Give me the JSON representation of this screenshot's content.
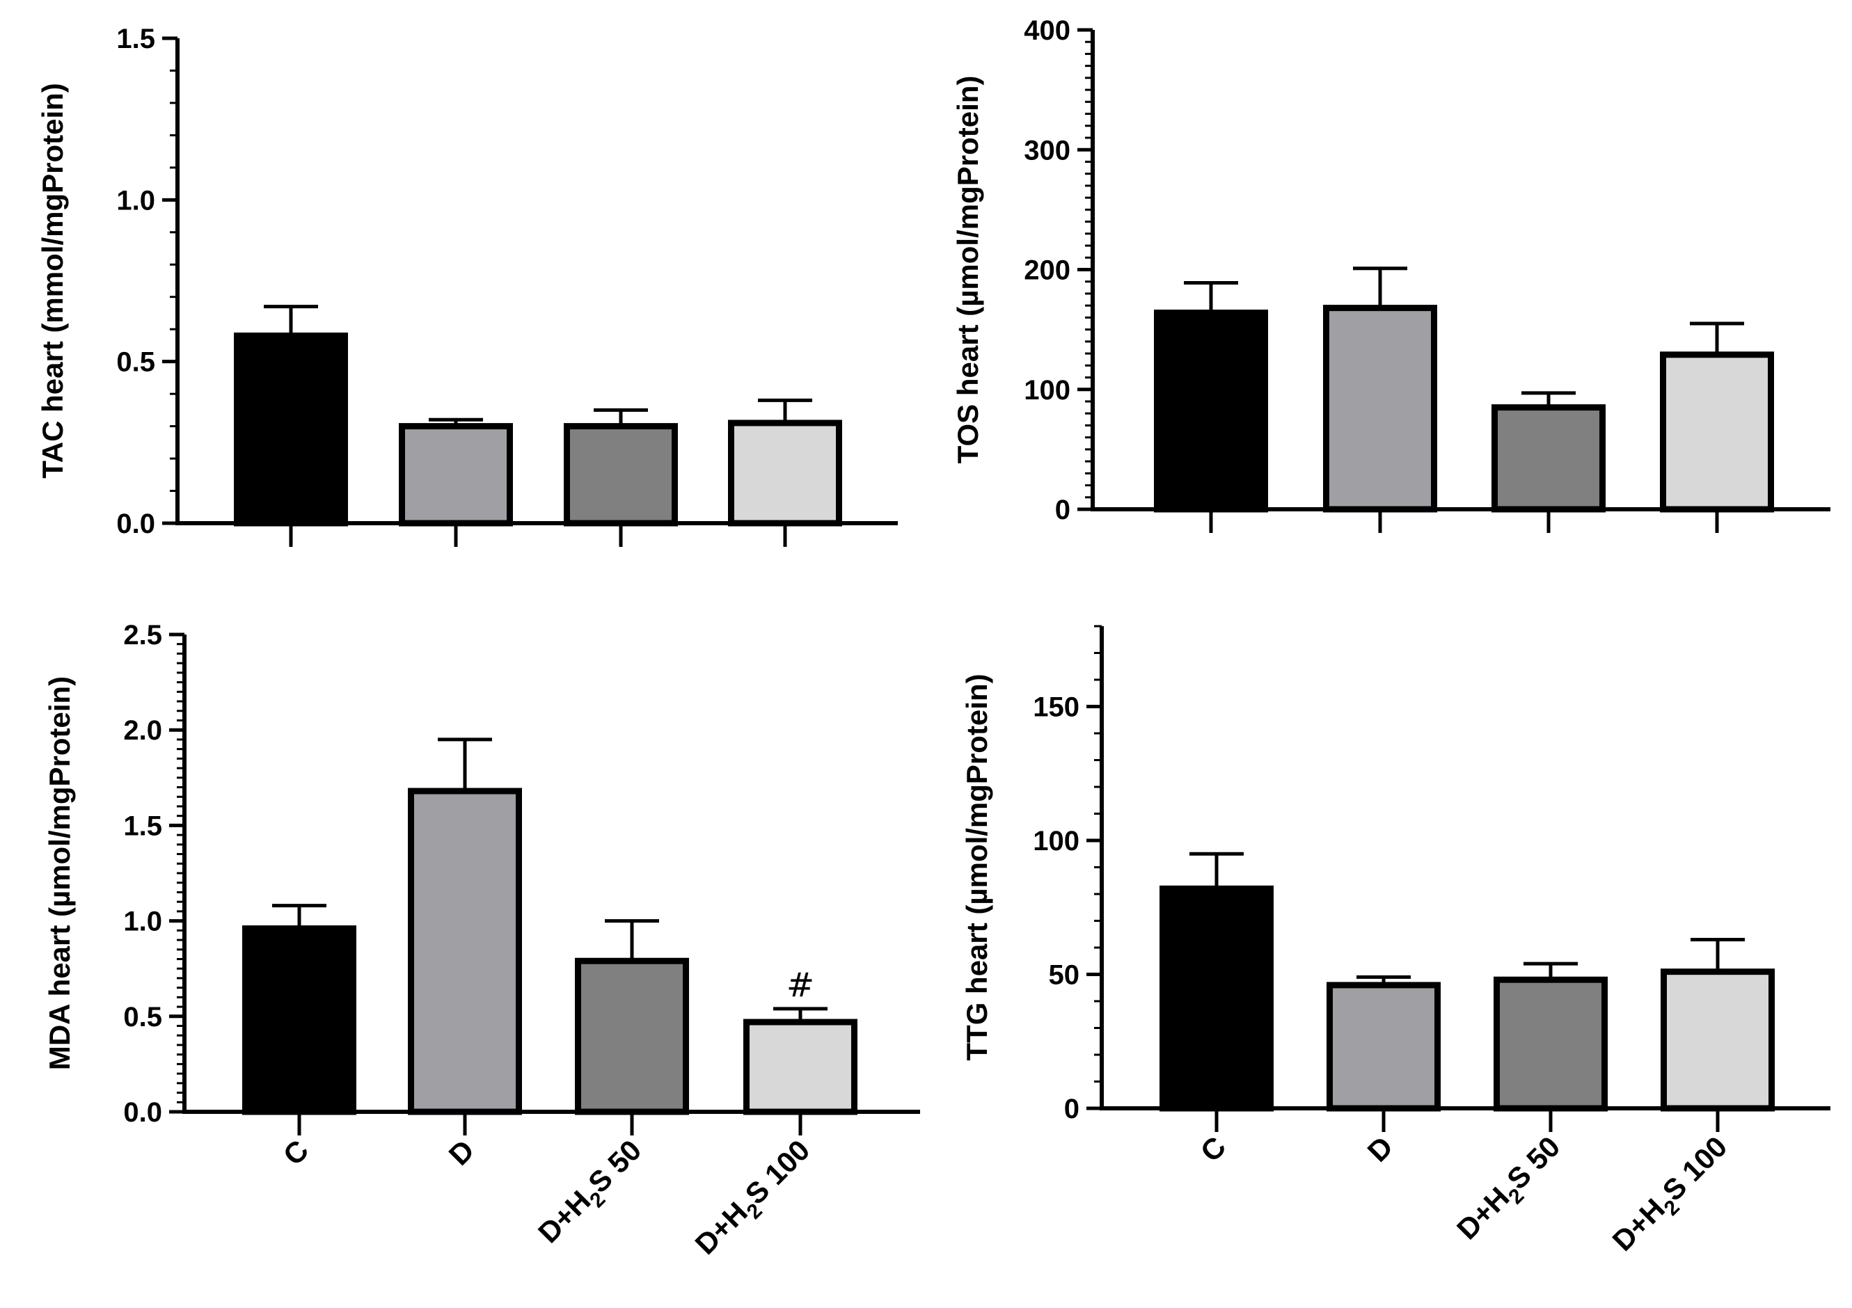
{
  "chart_data": [
    {
      "type": "bar",
      "panel": "top-left",
      "categories": [
        "C",
        "D",
        "D+H2S 50",
        "D+H2S 100"
      ],
      "values": [
        0.58,
        0.3,
        0.3,
        0.31
      ],
      "errors": [
        0.09,
        0.02,
        0.05,
        0.07
      ],
      "ylabel": "TAC heart (mmol/mgProtein)",
      "ylim": [
        0,
        1.5
      ],
      "yticks": [
        "0.0",
        "0.5",
        "1.0",
        "1.5"
      ],
      "show_category_labels": false,
      "annotations": [
        "",
        "",
        "",
        ""
      ]
    },
    {
      "type": "bar",
      "panel": "top-right",
      "categories": [
        "C",
        "D",
        "D+H2S 50",
        "D+H2S 100"
      ],
      "values": [
        164,
        168,
        85,
        129
      ],
      "errors": [
        25,
        33,
        12,
        26
      ],
      "ylabel": "TOS heart (µmol/mgProtein)",
      "ylim": [
        0,
        400
      ],
      "yticks": [
        "0",
        "100",
        "200",
        "300",
        "400"
      ],
      "show_category_labels": false,
      "annotations": [
        "",
        "",
        "",
        ""
      ]
    },
    {
      "type": "bar",
      "panel": "bottom-left",
      "categories": [
        "C",
        "D",
        "D+H2S 50",
        "D+H2S 100"
      ],
      "values": [
        0.96,
        1.68,
        0.79,
        0.47
      ],
      "errors": [
        0.12,
        0.27,
        0.21,
        0.07
      ],
      "ylabel": "MDA heart (µmol/mgProtein)",
      "ylim": [
        0,
        2.5
      ],
      "yticks": [
        "0.0",
        "0.5",
        "1.0",
        "1.5",
        "2.0",
        "2.5"
      ],
      "show_category_labels": true,
      "annotations": [
        "",
        "",
        "",
        "#"
      ]
    },
    {
      "type": "bar",
      "panel": "bottom-right",
      "categories": [
        "C",
        "D",
        "D+H2S 50",
        "D+H2S 100"
      ],
      "values": [
        82,
        46,
        48,
        51
      ],
      "errors": [
        13,
        3,
        6,
        12
      ],
      "ylabel": "TTG heart (µmol/mgProtein)",
      "ylim": [
        0,
        180
      ],
      "yticks": [
        "0",
        "50",
        "100",
        "150"
      ],
      "show_category_labels": true,
      "annotations": [
        "",
        "",
        "",
        ""
      ]
    }
  ],
  "bar_colors": [
    "#000000",
    "#a0a0a4",
    "#808080",
    "#d8d8d8"
  ]
}
